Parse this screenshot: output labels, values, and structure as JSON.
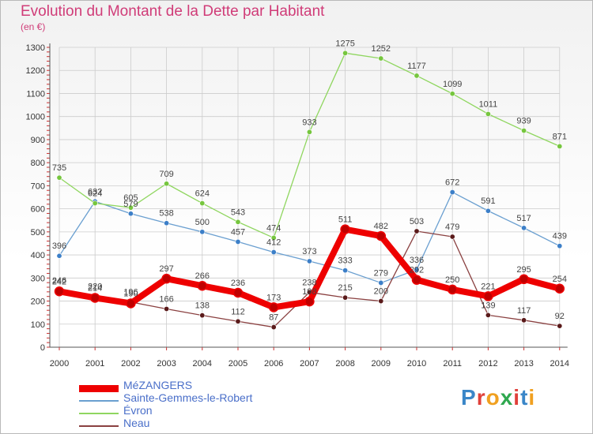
{
  "title": "Evolution du Montant de la Dette par Habitant",
  "subtitle": "(en €)",
  "logo": "Proxiti",
  "colors": {
    "title": "#d03c78",
    "grid": "#cccccc",
    "axis": "#555555"
  },
  "chart_data": {
    "type": "line",
    "title": "Evolution du Montant de la Dette par Habitant",
    "ylabel": "(en €)",
    "xlabel": "",
    "ylim": [
      0,
      1300
    ],
    "yticks": [
      0,
      100,
      200,
      300,
      400,
      500,
      600,
      700,
      800,
      900,
      1000,
      1100,
      1200,
      1300
    ],
    "categories": [
      "2000",
      "2001",
      "2002",
      "2003",
      "2004",
      "2005",
      "2006",
      "2007",
      "2008",
      "2009",
      "2010",
      "2011",
      "2012",
      "2013",
      "2014"
    ],
    "series": [
      {
        "name": "MéZANGERS",
        "color": "#ee0000",
        "marker": "#c00000",
        "values": [
          242,
          214,
          190,
          297,
          266,
          236,
          173,
          198,
          511,
          482,
          292,
          250,
          221,
          295,
          254
        ]
      },
      {
        "name": "Sainte-Gemmes-le-Robert",
        "color": "#6a9fd0",
        "marker": "#3c7fc8",
        "values": [
          396,
          632,
          579,
          538,
          500,
          457,
          412,
          373,
          333,
          279,
          336,
          672,
          591,
          517,
          439
        ]
      },
      {
        "name": "Évron",
        "color": "#8fd65f",
        "marker": "#76c63e",
        "values": [
          735,
          624,
          605,
          709,
          624,
          543,
          474,
          933,
          1275,
          1252,
          1177,
          1099,
          1011,
          939,
          871
        ]
      },
      {
        "name": "Neau",
        "color": "#8a4040",
        "marker": "#5a1a1a",
        "values": [
          246,
          220,
          196,
          166,
          138,
          112,
          87,
          238,
          215,
          200,
          503,
          479,
          139,
          117,
          92
        ]
      }
    ]
  }
}
